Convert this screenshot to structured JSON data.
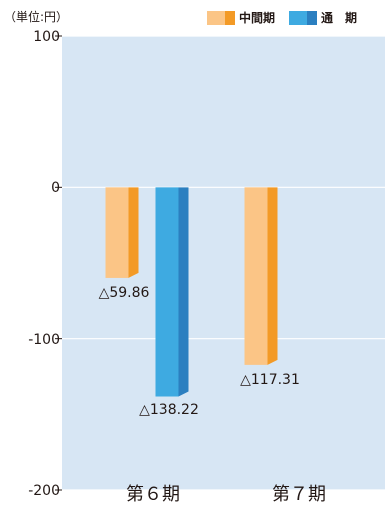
{
  "unit_label": "（単位:円）",
  "colors": {
    "background": "#d7e6f4",
    "interim_front": "#fbc586",
    "interim_side": "#f39a26",
    "annual_front": "#3eaae1",
    "annual_side": "#2b7fc0"
  },
  "legend": [
    {
      "label": "中間期"
    },
    {
      "label": "通　期"
    }
  ],
  "chart_data": {
    "type": "bar",
    "categories": [
      "第６期",
      "第７期"
    ],
    "series": [
      {
        "name": "中間期",
        "values": [
          -59.86,
          -117.31
        ],
        "labels": [
          "△59.86",
          "△117.31"
        ]
      },
      {
        "name": "通　期",
        "values": [
          -138.22,
          null
        ],
        "labels": [
          "△138.22",
          ""
        ]
      }
    ],
    "y_ticks": [
      "100",
      "0",
      "-100",
      "-200"
    ],
    "ylim": [
      -200,
      100
    ],
    "grid": true
  }
}
